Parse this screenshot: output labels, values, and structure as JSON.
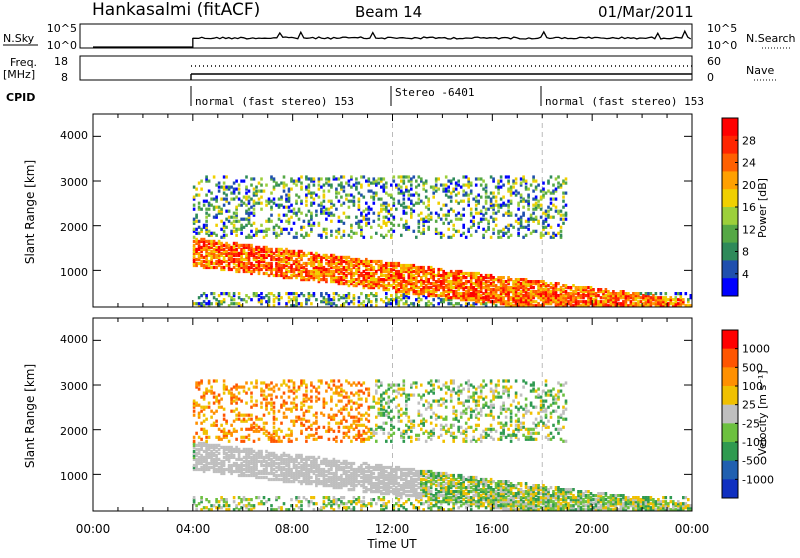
{
  "header": {
    "station": "Hankasalmi (fitACF)",
    "beam": "Beam 14",
    "date": "01/Mar/2011"
  },
  "top_panels": {
    "nsky_label": "N.Sky",
    "nsky_ticks": [
      "10^5",
      "10^0"
    ],
    "nsearch_label": "N.Search",
    "nsearch_ticks": [
      "10^5",
      "10^0"
    ],
    "freq_label": "Freq.",
    "freq_unit": "[MHz]",
    "freq_ticks": [
      "18",
      "8"
    ],
    "nave_label": "Nave",
    "nave_ticks": [
      "60",
      "0"
    ],
    "cpid_label": "CPID",
    "cpid_segments": [
      {
        "label": "normal (fast stereo) 153",
        "start_hour": 4
      },
      {
        "label": "Stereo -6401",
        "start_hour": 12
      },
      {
        "label": "normal (fast stereo) 153",
        "start_hour": 18
      }
    ]
  },
  "chart_data": [
    {
      "type": "heatmap",
      "name": "power",
      "ylabel": "Slant Range [km]",
      "yticks": [
        "4000",
        "3000",
        "2000",
        "1000"
      ],
      "ylim": [
        180,
        4500
      ],
      "xlim": [
        0,
        24
      ],
      "colorbar_label": "Power [dB]",
      "colorbar_ticks": [
        "28",
        "24",
        "20",
        "16",
        "12",
        "8",
        "4"
      ],
      "colorbar_colors": [
        "#0000ff",
        "#1f4fae",
        "#2f8a5a",
        "#55a845",
        "#9ccf3a",
        "#f0d000",
        "#ffa000",
        "#ff6000",
        "#ff2500",
        "#ff0000"
      ],
      "data_start_hour": 4,
      "dashed_hours": [
        12,
        18
      ]
    },
    {
      "type": "heatmap",
      "name": "velocity",
      "ylabel": "Slant Range [km]",
      "yticks": [
        "4000",
        "3000",
        "2000",
        "1000"
      ],
      "ylim": [
        180,
        4500
      ],
      "xlim": [
        0,
        24
      ],
      "colorbar_label": "Velocity [m s⁻¹]",
      "colorbar_ticks": [
        "1000",
        "500",
        "100",
        "25",
        "-25",
        "-100",
        "-500",
        "-1000"
      ],
      "colorbar_colors": [
        "#1030c0",
        "#2060b0",
        "#2f9a50",
        "#6cc03f",
        "#bfbfbf",
        "#f0c000",
        "#ff9000",
        "#ff5500",
        "#ff0000"
      ],
      "ground_scatter_color": "#bfbfbf",
      "data_start_hour": 4,
      "dashed_hours": [
        12,
        18
      ]
    }
  ],
  "x_axis": {
    "ticks": [
      "00:00",
      "04:00",
      "08:00",
      "12:00",
      "16:00",
      "20:00",
      "00:00"
    ],
    "label": "Time UT"
  }
}
